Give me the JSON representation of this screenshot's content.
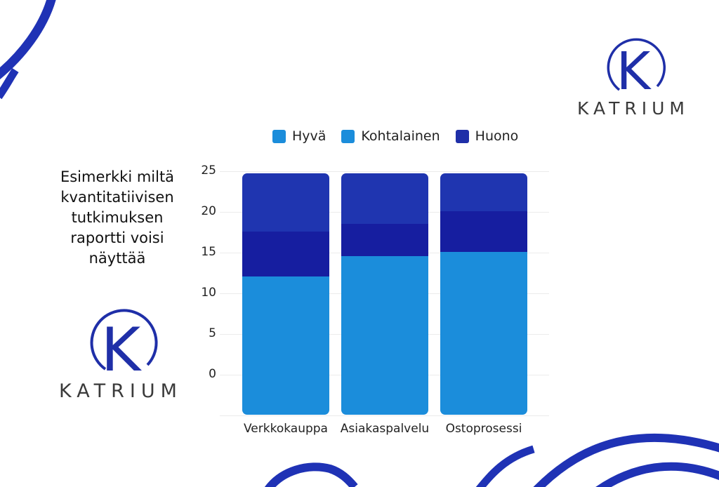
{
  "caption": {
    "lines": [
      "Esimerkki miltä",
      "kvantitatiivisen",
      "tutkimuksen",
      "raportti voisi",
      "näyttää"
    ]
  },
  "brand": {
    "name": "KATRIUM",
    "letter": "K",
    "color": "#1f2fa8"
  },
  "legend": [
    {
      "label": "Hyvä",
      "color": "#1b8ddb"
    },
    {
      "label": "Kohtalainen",
      "color": "#1b8ddb"
    },
    {
      "label": "Huono",
      "color": "#1f2fa8"
    }
  ],
  "segment_colors": {
    "bottom": "#1b8ddb",
    "middle": "#161ea0",
    "top": "#1f35b0"
  },
  "chart_data": {
    "type": "bar",
    "stacked": true,
    "title": "",
    "xlabel": "",
    "ylabel": "",
    "categories": [
      "Verkkokauppa",
      "Asiakaspalvelu",
      "Ostoprosessi"
    ],
    "series": [
      {
        "name": "Hyvä",
        "values": [
          12.0,
          14.5,
          15.0
        ],
        "note": "bottom segment, drawn from -5 baseline"
      },
      {
        "name": "Kohtalainen",
        "values": [
          5.5,
          4.0,
          5.0
        ],
        "note": "middle segment (dark navy)"
      },
      {
        "name": "Huono",
        "values": [
          7.2,
          6.2,
          4.7
        ],
        "note": "top segment"
      }
    ],
    "segment_tops": {
      "Verkkokauppa": [
        12.0,
        17.5,
        24.7
      ],
      "Asiakaspalvelu": [
        14.5,
        18.5,
        24.7
      ],
      "Ostoprosessi": [
        15.0,
        20.0,
        24.7
      ]
    },
    "yticks": [
      0,
      5,
      10,
      15,
      20,
      25
    ],
    "ylim": [
      -5,
      25
    ],
    "grid": true,
    "legend_position": "top"
  }
}
